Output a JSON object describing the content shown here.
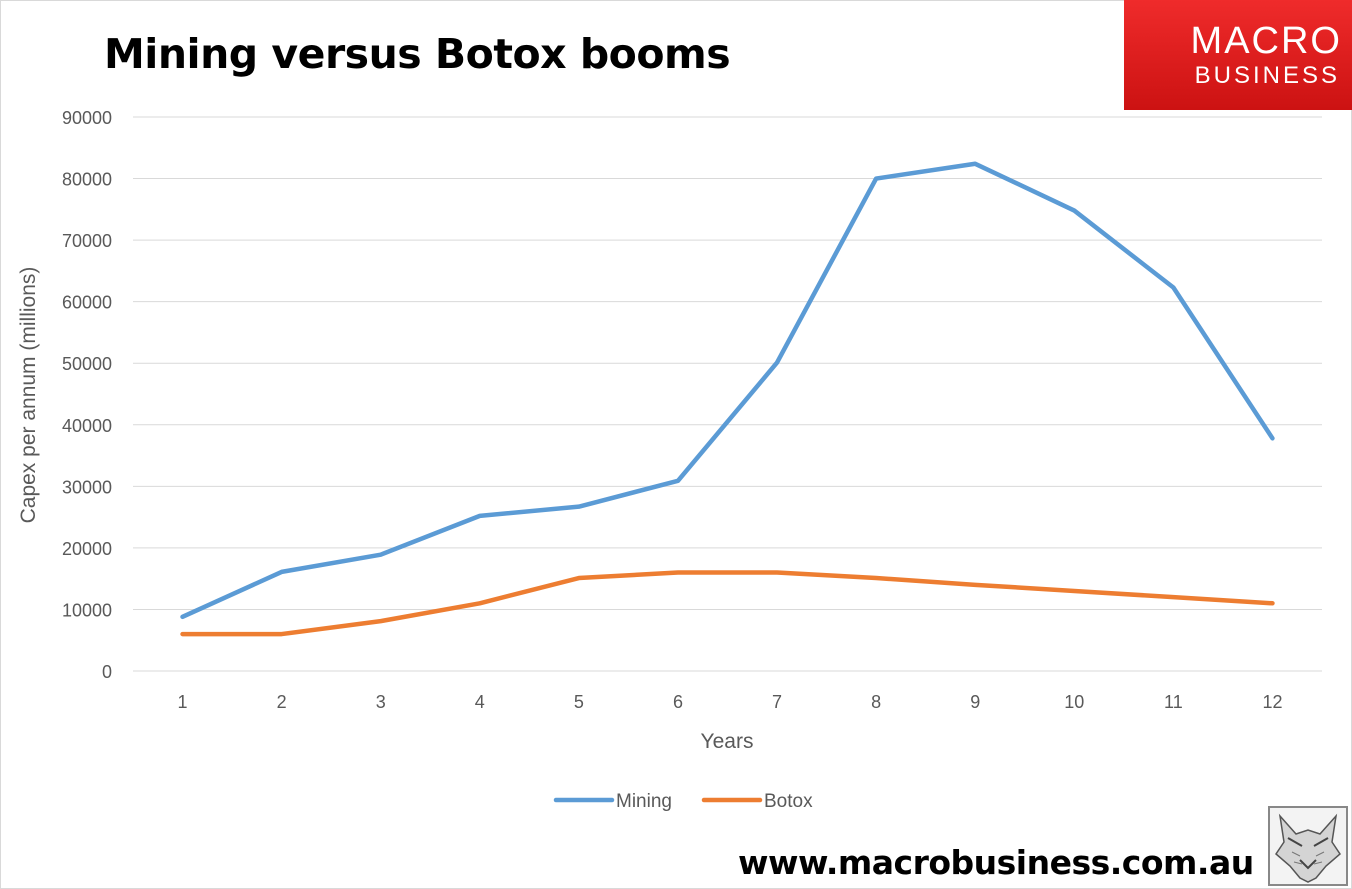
{
  "title": "Mining versus Botox booms",
  "logo": {
    "line1": "MACRO",
    "line2": "BUSINESS"
  },
  "footer_url": "www.macrobusiness.com.au",
  "colors": {
    "mining": "#5b9bd5",
    "botox": "#ed7d31",
    "grid": "#d9d9d9",
    "axis_text": "#595959",
    "logo_red": "#e02020"
  },
  "chart_data": {
    "type": "line",
    "xlabel": "Years",
    "ylabel": "Capex per annum (millions)",
    "categories": [
      "1",
      "2",
      "3",
      "4",
      "5",
      "6",
      "7",
      "8",
      "9",
      "10",
      "11",
      "12"
    ],
    "y_ticks": [
      "0",
      "10000",
      "20000",
      "30000",
      "40000",
      "50000",
      "60000",
      "70000",
      "80000",
      "90000"
    ],
    "ylim": [
      0,
      90000
    ],
    "grid": true,
    "legend_position": "bottom",
    "series": [
      {
        "name": "Mining",
        "color": "#5b9bd5",
        "values": [
          8800,
          16100,
          18900,
          25200,
          26700,
          30900,
          50100,
          80000,
          82400,
          74800,
          62300,
          37800
        ]
      },
      {
        "name": "Botox",
        "color": "#ed7d31",
        "values": [
          6000,
          6000,
          8100,
          11000,
          15100,
          16000,
          16000,
          15100,
          14000,
          13000,
          12000,
          11000
        ]
      }
    ]
  }
}
